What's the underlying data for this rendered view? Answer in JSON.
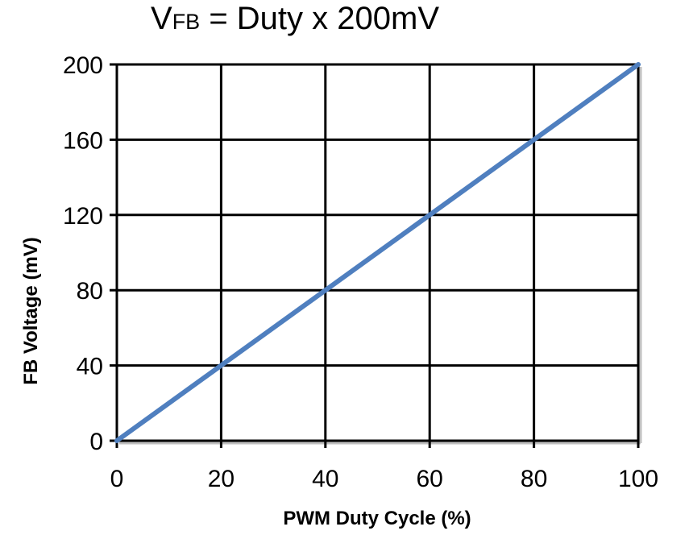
{
  "chart_data": {
    "type": "line",
    "title": {
      "base": "V",
      "subscript": "FB",
      "rest": " = Duty x 200mV"
    },
    "xlabel": "PWM Duty Cycle (%)",
    "ylabel": "FB Voltage (mV)",
    "xlim": [
      0,
      100
    ],
    "ylim": [
      0,
      200
    ],
    "xticks": [
      0,
      20,
      40,
      60,
      80,
      100
    ],
    "yticks": [
      0,
      40,
      80,
      120,
      160,
      200
    ],
    "xtick_labels": [
      "0",
      "20",
      "40",
      "60",
      "80",
      "100"
    ],
    "ytick_labels": [
      "0",
      "40",
      "80",
      "120",
      "160",
      "200"
    ],
    "grid": true,
    "series": [
      {
        "name": "VFB",
        "x": [
          0,
          100
        ],
        "y": [
          0,
          200
        ],
        "color": "#4f7fbf"
      }
    ]
  }
}
